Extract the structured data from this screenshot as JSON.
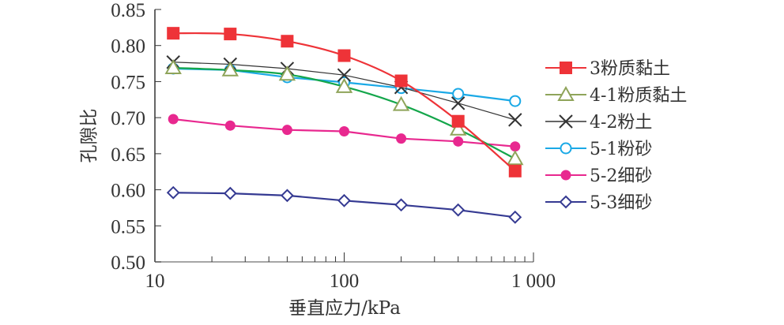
{
  "chart_data": {
    "type": "line",
    "title": "",
    "xlabel": "垂直应力/kPa",
    "ylabel": "孔隙比",
    "xscale": "log",
    "xlim": [
      10,
      1000
    ],
    "ylim": [
      0.5,
      0.85
    ],
    "x_ticks": [
      {
        "value": 10,
        "label": "10"
      },
      {
        "value": 100,
        "label": "100"
      },
      {
        "value": 1000,
        "label": "1 000"
      }
    ],
    "y_ticks": [
      {
        "value": 0.5,
        "label": "0.50"
      },
      {
        "value": 0.55,
        "label": "0.55"
      },
      {
        "value": 0.6,
        "label": "0.60"
      },
      {
        "value": 0.65,
        "label": "0.65"
      },
      {
        "value": 0.7,
        "label": "0.70"
      },
      {
        "value": 0.75,
        "label": "0.75"
      },
      {
        "value": 0.8,
        "label": "0.80"
      },
      {
        "value": 0.85,
        "label": "0.85"
      }
    ],
    "grid": false,
    "legend_position": "right",
    "x": [
      12.5,
      25,
      50,
      100,
      200,
      400,
      800
    ],
    "series": [
      {
        "name": "3粉质黏土",
        "color": "#ee3338",
        "marker": "filled-square",
        "smooth": true,
        "values": [
          0.817,
          0.816,
          0.806,
          0.786,
          0.751,
          0.695,
          0.626
        ]
      },
      {
        "name": " 4-1粉质黏土",
        "color": "#14a64b",
        "marker_color": "#8fa45a",
        "marker": "open-triangle",
        "smooth": true,
        "values": [
          0.769,
          0.766,
          0.76,
          0.743,
          0.718,
          0.684,
          0.643
        ]
      },
      {
        "name": "4-2粉土",
        "color": "#333333",
        "marker": "x",
        "smooth": false,
        "values": [
          0.777,
          0.774,
          0.768,
          0.759,
          0.742,
          0.72,
          0.697
        ]
      },
      {
        "name": "5-1粉砂",
        "color": "#1aa9e6",
        "marker": "open-circle",
        "smooth": false,
        "values": [
          0.768,
          0.766,
          0.756,
          0.749,
          0.741,
          0.733,
          0.723
        ]
      },
      {
        "name": "5-2细砂",
        "color": "#e8288f",
        "marker": "filled-circle",
        "smooth": false,
        "values": [
          0.698,
          0.689,
          0.683,
          0.681,
          0.671,
          0.667,
          0.66
        ]
      },
      {
        "name": "5-3细砂",
        "color": "#353a92",
        "marker": "open-diamond",
        "smooth": false,
        "values": [
          0.596,
          0.595,
          0.592,
          0.585,
          0.579,
          0.572,
          0.562
        ]
      }
    ]
  }
}
